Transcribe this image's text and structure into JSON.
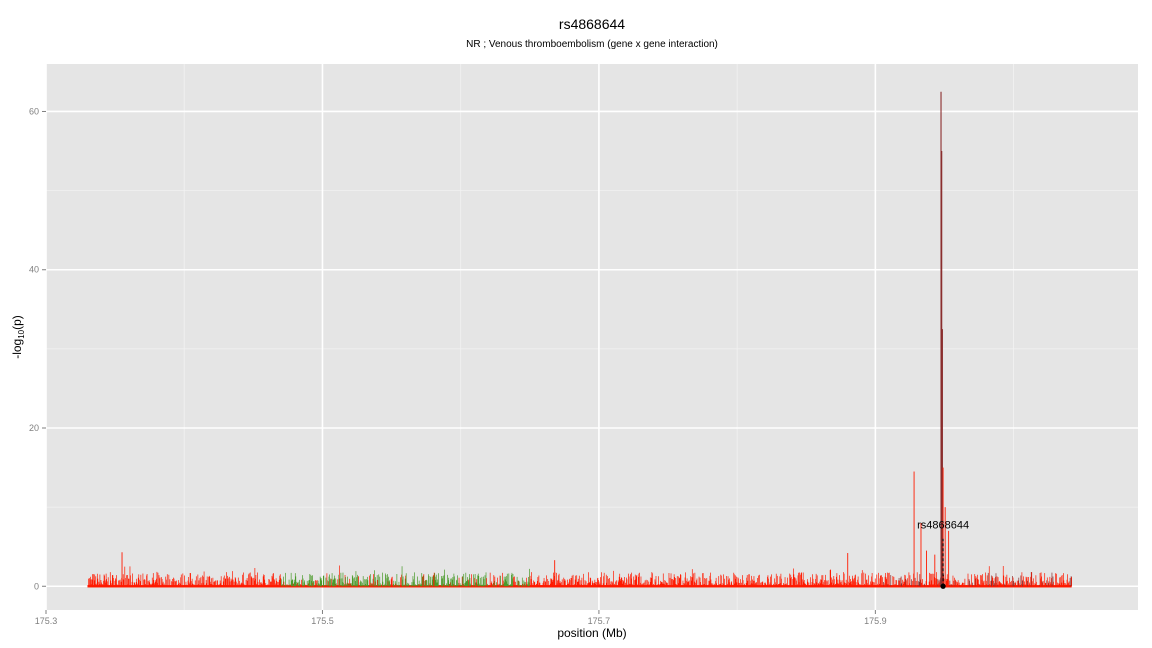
{
  "chart_data": {
    "type": "area",
    "title": "rs4868644",
    "subtitle": "NR ; Venous thromboembolism (gene x gene interaction)",
    "xlabel": "position (Mb)",
    "ylabel_main": "-log",
    "ylabel_sub": "10",
    "ylabel_tail": "(p)",
    "xlim": [
      175.3,
      176.09
    ],
    "ylim": [
      -3,
      66
    ],
    "x_ticks": [
      175.3,
      175.5,
      175.7,
      175.9
    ],
    "x_tick_labels": [
      "175.3",
      "175.5",
      "175.7",
      "175.9"
    ],
    "y_ticks": [
      0,
      20,
      40,
      60
    ],
    "y_tick_labels": [
      "0",
      "20",
      "40",
      "60"
    ],
    "grid": true,
    "data_range": [
      175.33,
      176.042
    ],
    "series_colors": {
      "red": "#ff1a00",
      "green": "#4a9a2a",
      "dark": "#8b2e2e"
    },
    "green_region": [
      175.47,
      175.65
    ],
    "peaks": [
      {
        "x": 175.355,
        "y": 4.3
      },
      {
        "x": 175.668,
        "y": 3.3
      },
      {
        "x": 175.88,
        "y": 4.2
      },
      {
        "x": 175.928,
        "y": 14.5
      },
      {
        "x": 175.933,
        "y": 8.0
      },
      {
        "x": 175.937,
        "y": 4.5
      },
      {
        "x": 175.943,
        "y": 4.0
      },
      {
        "x": 175.9475,
        "y": 62.5
      },
      {
        "x": 175.948,
        "y": 55.0
      },
      {
        "x": 175.9485,
        "y": 32.5
      },
      {
        "x": 175.949,
        "y": 15.0
      },
      {
        "x": 175.9505,
        "y": 10.0
      },
      {
        "x": 175.953,
        "y": 7.0
      }
    ],
    "highlight_snp": {
      "label": "rs4868644",
      "x": 175.949,
      "y": 0
    }
  }
}
